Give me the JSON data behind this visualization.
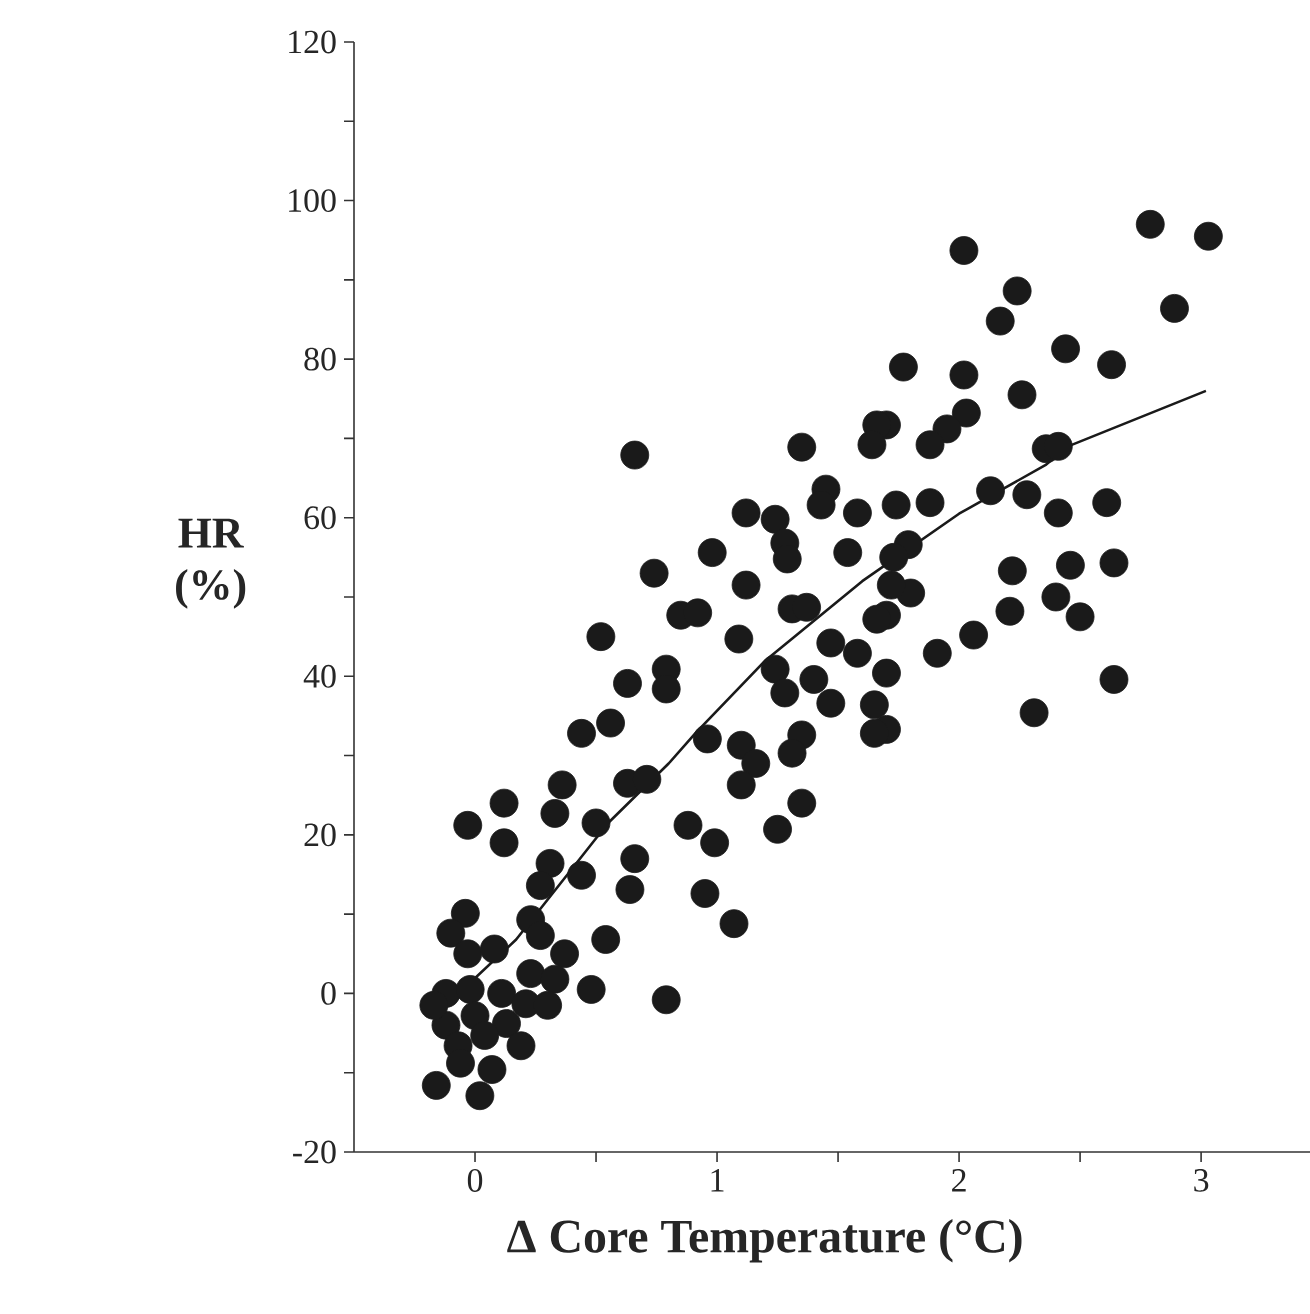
{
  "chart_data": {
    "type": "scatter",
    "xlabel": "Δ Core Temperature (°C)",
    "ylabel": "HR (%)",
    "xlim": [
      -0.5,
      3.45
    ],
    "ylim": [
      -20,
      120
    ],
    "xticks": [
      0,
      {
        "value": 0.5,
        "label": null
      },
      1,
      {
        "value": 1.5,
        "label": null
      },
      2,
      {
        "value": 2.5,
        "label": null
      },
      3
    ],
    "yticks": [
      -20,
      {
        "value": -10,
        "label": null
      },
      0,
      {
        "value": 10,
        "label": null
      },
      20,
      {
        "value": 30,
        "label": null
      },
      40,
      {
        "value": 50,
        "label": null
      },
      60,
      {
        "value": 70,
        "label": null
      },
      80,
      {
        "value": 90,
        "label": null
      },
      100,
      {
        "value": 110,
        "label": null
      },
      120
    ],
    "marker": "circle",
    "grid": false,
    "series": [
      {
        "type": "scatter",
        "color": "#1a1a1a",
        "x": [
          2.02,
          2.24,
          2.17,
          2.79,
          3.03,
          2.89,
          2.44,
          2.63,
          1.77,
          2.02,
          2.03,
          1.95,
          1.88,
          1.7,
          2.26,
          2.36,
          2.41,
          2.13,
          2.28,
          1.88,
          1.74,
          2.61,
          2.41,
          2.22,
          2.46,
          2.64,
          2.4,
          2.5,
          2.21,
          2.06,
          1.91,
          2.64,
          2.31,
          1.79,
          1.8,
          1.7,
          1.7,
          1.7,
          1.35,
          1.66,
          1.64,
          1.12,
          1.24,
          1.28,
          1.29,
          1.45,
          1.43,
          1.58,
          1.54,
          1.73,
          0.98,
          1.12,
          1.72,
          0.85,
          0.92,
          1.31,
          1.37,
          1.66,
          1.09,
          1.47,
          1.58,
          1.24,
          1.28,
          1.4,
          1.47,
          1.65,
          1.65,
          1.35,
          1.31,
          1.1,
          1.16,
          1.1,
          0.96,
          0.79,
          0.66,
          0.74,
          0.52,
          0.63,
          0.79,
          0.44,
          0.56,
          0.63,
          0.71,
          1.35,
          1.25,
          0.88,
          0.12,
          0.36,
          0.33,
          -0.03,
          0.5,
          0.12,
          0.31,
          0.27,
          0.44,
          0.66,
          0.64,
          0.99,
          0.95,
          1.07,
          -0.04,
          -0.1,
          -0.03,
          0.08,
          0.23,
          0.27,
          0.37,
          0.54,
          0.23,
          0.33,
          0.48,
          0.79,
          -0.12,
          -0.02,
          0.11,
          -0.12,
          0.0,
          0.13,
          0.19,
          -0.07,
          -0.06,
          -0.16,
          0.07,
          0.02,
          -0.17,
          0.04,
          0.21,
          0.3
        ],
        "values": [
          93.7,
          88.6,
          84.8,
          97,
          95.5,
          86.4,
          81.3,
          79.3,
          79,
          78,
          73.2,
          71.2,
          69.2,
          71.7,
          75.5,
          68.7,
          69,
          63.4,
          62.9,
          61.9,
          61.6,
          61.9,
          60.6,
          53.3,
          54,
          54.3,
          50,
          47.5,
          48.2,
          45.2,
          42.9,
          39.6,
          35.4,
          56.6,
          50.5,
          47.7,
          40.4,
          33.3,
          68.9,
          71.7,
          69.2,
          60.6,
          59.8,
          56.8,
          54.8,
          63.6,
          61.6,
          60.6,
          55.6,
          55,
          55.6,
          51.5,
          51.5,
          47.7,
          48,
          48.5,
          48.7,
          47.2,
          44.7,
          44.2,
          42.9,
          40.9,
          37.9,
          39.6,
          36.6,
          36.4,
          32.8,
          32.6,
          30.3,
          31.3,
          29,
          26.3,
          32.1,
          40.9,
          67.9,
          53,
          45,
          39.1,
          38.4,
          32.8,
          34.1,
          26.5,
          27,
          24,
          20.7,
          21.2,
          24,
          26.3,
          22.7,
          21.2,
          21.5,
          19,
          16.4,
          13.6,
          14.9,
          17,
          13.1,
          19,
          12.6,
          8.8,
          10.1,
          7.6,
          5,
          5.6,
          9.3,
          7.3,
          5,
          6.8,
          2.5,
          1.8,
          0.5,
          -0.8,
          0,
          0.5,
          0,
          -4,
          -2.8,
          -3.8,
          -6.6,
          -6.6,
          -8.8,
          -11.6,
          -9.6,
          -12.9,
          -1.5,
          -5.3,
          -1.3,
          -1.5
        ]
      },
      {
        "type": "line",
        "marker": "none",
        "color": "#1a1a1a",
        "x": [
          -0.05,
          0.17,
          0.55,
          0.8,
          0.91,
          1.2,
          1.6,
          2.0,
          2.36,
          2.45,
          3.02
        ],
        "values": [
          0.5,
          6.8,
          21.5,
          29,
          32.8,
          42,
          52,
          60.5,
          66.7,
          69,
          76
        ]
      }
    ]
  }
}
